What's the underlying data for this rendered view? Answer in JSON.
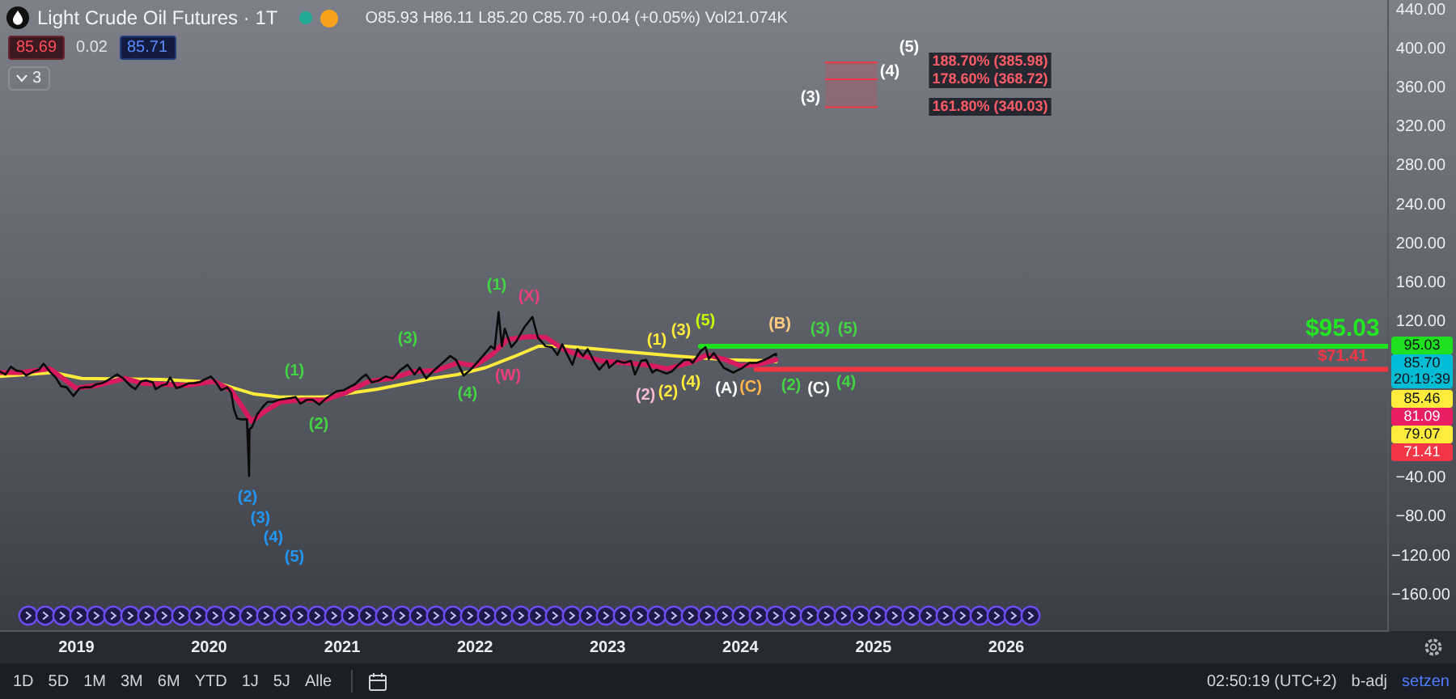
{
  "chart_data": {
    "type": "line",
    "title": "Light Crude Oil Futures · 1T",
    "subtitle": "O85.93 H86.11 L85.20 C85.70 +0.04 (+0.05%) Vol21.074K",
    "xlim": [
      "2018-06-05",
      "2028-11-16"
    ],
    "xticks": [
      "2019",
      "2020",
      "2021",
      "2022",
      "2023",
      "2024",
      "2025",
      "2026"
    ],
    "ylim": [
      -197,
      450
    ],
    "yticks": [
      {
        "value": 440,
        "label": "440.00"
      },
      {
        "value": 400,
        "label": "400.00"
      },
      {
        "value": 360,
        "label": "360.00"
      },
      {
        "value": 320,
        "label": "320.00"
      },
      {
        "value": 280,
        "label": "280.00"
      },
      {
        "value": 240,
        "label": "240.00"
      },
      {
        "value": 200,
        "label": "200.00"
      },
      {
        "value": 160,
        "label": "160.00"
      },
      {
        "value": 120,
        "label": "120.00"
      },
      {
        "value": -40,
        "label": "−40.00"
      },
      {
        "value": -80,
        "label": "−80.00"
      },
      {
        "value": -120,
        "label": "−120.00"
      },
      {
        "value": -160,
        "label": "−160.00"
      }
    ],
    "series": [
      {
        "color": "#0a0a0a",
        "x": [
          "2018-06-05",
          "2018-06-20",
          "2018-07-05",
          "2018-07-20",
          "2018-08-05",
          "2018-08-16",
          "2018-09-05",
          "2018-09-20",
          "2018-10-03",
          "2018-10-20",
          "2018-11-05",
          "2018-11-20",
          "2018-12-05",
          "2018-12-24",
          "2019-01-10",
          "2019-01-25",
          "2019-02-10",
          "2019-02-25",
          "2019-03-12",
          "2019-03-28",
          "2019-04-23",
          "2019-05-10",
          "2019-05-31",
          "2019-06-12",
          "2019-06-28",
          "2019-07-12",
          "2019-07-30",
          "2019-08-07",
          "2019-08-25",
          "2019-09-06",
          "2019-09-16",
          "2019-10-03",
          "2019-10-20",
          "2019-11-05",
          "2019-11-20",
          "2019-12-05",
          "2019-12-20",
          "2020-01-06",
          "2020-01-20",
          "2020-02-03",
          "2020-02-20",
          "2020-03-02",
          "2020-03-09",
          "2020-03-18",
          "2020-03-30",
          "2020-04-14",
          "2020-04-20",
          "2020-04-21",
          "2020-04-28",
          "2020-05-12",
          "2020-05-28",
          "2020-06-10",
          "2020-06-25",
          "2020-07-10",
          "2020-07-28",
          "2020-08-15",
          "2020-08-26",
          "2020-09-08",
          "2020-09-25",
          "2020-10-12",
          "2020-10-30",
          "2020-11-16",
          "2020-12-01",
          "2020-12-18",
          "2021-01-06",
          "2021-01-20",
          "2021-02-05",
          "2021-02-24",
          "2021-03-08",
          "2021-03-23",
          "2021-04-12",
          "2021-04-30",
          "2021-05-20",
          "2021-06-08",
          "2021-06-30",
          "2021-07-19",
          "2021-08-02",
          "2021-08-20",
          "2021-09-07",
          "2021-09-28",
          "2021-10-25",
          "2021-11-10",
          "2021-12-01",
          "2021-12-20",
          "2022-01-04",
          "2022-01-25",
          "2022-02-14",
          "2022-02-24",
          "2022-03-07",
          "2022-03-16",
          "2022-03-24",
          "2022-04-11",
          "2022-04-25",
          "2022-05-16",
          "2022-06-08",
          "2022-06-23",
          "2022-07-05",
          "2022-07-14",
          "2022-08-01",
          "2022-08-16",
          "2022-08-29",
          "2022-09-26",
          "2022-10-10",
          "2022-10-25",
          "2022-11-07",
          "2022-11-28",
          "2022-12-09",
          "2022-12-30",
          "2023-01-05",
          "2023-01-27",
          "2023-02-15",
          "2023-03-06",
          "2023-03-17",
          "2023-04-03",
          "2023-04-17",
          "2023-05-04",
          "2023-05-15",
          "2023-06-12",
          "2023-06-26",
          "2023-07-12",
          "2023-07-31",
          "2023-08-15",
          "2023-08-23",
          "2023-09-14",
          "2023-09-27",
          "2023-10-06",
          "2023-10-20",
          "2023-11-16",
          "2023-12-12",
          "2024-01-03",
          "2024-01-26",
          "2024-02-15",
          "2024-03-01",
          "2024-03-19",
          "2024-04-05",
          "2024-04-08"
        ],
        "values": [
          69,
          66,
          74,
          70,
          69,
          65,
          69,
          71,
          77,
          69,
          63,
          54,
          53,
          44,
          52,
          53,
          53,
          56,
          57,
          60,
          66,
          62,
          54,
          51,
          59,
          60,
          58,
          51,
          55,
          56,
          63,
          52,
          54,
          57,
          57,
          58,
          61,
          64,
          58,
          50,
          53,
          47,
          31,
          21,
          20,
          20,
          -38,
          10,
          12,
          25,
          33,
          38,
          38,
          40,
          41,
          42,
          43,
          36,
          40,
          40,
          35,
          41,
          45,
          49,
          50,
          53,
          56,
          63,
          66,
          58,
          60,
          64,
          62,
          70,
          76,
          66,
          73,
          62,
          69,
          76,
          85,
          81,
          65,
          71,
          77,
          86,
          95,
          92,
          130,
          95,
          113,
          94,
          100,
          114,
          125,
          104,
          99,
          95,
          94,
          86,
          97,
          76,
          92,
          85,
          92,
          77,
          71,
          80,
          73,
          80,
          78,
          80,
          66,
          80,
          81,
          68,
          71,
          67,
          69,
          75,
          81,
          81,
          78,
          90,
          94,
          82,
          88,
          73,
          68,
          72,
          78,
          78,
          80,
          83,
          87,
          85.7
        ]
      },
      {
        "color": "#d81b60",
        "x": [
          "2018-06-05",
          "2018-08-01",
          "2018-10-20",
          "2018-12-31",
          "2019-03-01",
          "2019-05-15",
          "2019-07-01",
          "2019-09-01",
          "2019-11-01",
          "2020-01-15",
          "2020-03-01",
          "2020-04-01",
          "2020-04-27",
          "2020-06-01",
          "2020-07-15",
          "2020-09-15",
          "2020-11-15",
          "2021-01-15",
          "2021-03-15",
          "2021-05-15",
          "2021-07-15",
          "2021-09-15",
          "2021-11-15",
          "2022-01-01",
          "2022-02-15",
          "2022-04-01",
          "2022-06-01",
          "2022-07-15",
          "2022-09-01",
          "2022-10-15",
          "2022-12-15",
          "2023-02-15",
          "2023-04-15",
          "2023-06-15",
          "2023-08-15",
          "2023-10-01",
          "2023-11-15",
          "2024-01-01",
          "2024-02-15",
          "2024-04-08"
        ],
        "values": [
          68,
          68,
          72,
          52,
          55,
          62,
          57,
          56,
          55,
          59,
          50,
          33,
          18,
          28,
          38,
          40,
          40,
          48,
          59,
          62,
          69,
          70,
          78,
          75,
          86,
          102,
          105,
          104,
          92,
          86,
          80,
          78,
          76,
          72,
          78,
          86,
          82,
          75,
          76,
          81.09
        ]
      },
      {
        "color": "#ffeb3b",
        "x": [
          "2018-06-05",
          "2018-10-30",
          "2019-01-15",
          "2019-08-23",
          "2020-01-18",
          "2020-05-04",
          "2020-07-13",
          "2020-11-10",
          "2021-04-08",
          "2021-09-05",
          "2021-11-14",
          "2022-01-30",
          "2022-04-16",
          "2022-06-25",
          "2022-09-09",
          "2023-02-03",
          "2023-07-06",
          "2023-11-30",
          "2024-03-28",
          "2024-04-08"
        ],
        "values": [
          64,
          68,
          62,
          61,
          58,
          46,
          43,
          43,
          51,
          62,
          66,
          73,
          84,
          95,
          95,
          90,
          85,
          81,
          80,
          79.07
        ]
      },
      {
        "color": "#1fe01f",
        "x": [
          "2023-09-13",
          "2028-11-16"
        ],
        "values": [
          95.03,
          95.03
        ]
      },
      {
        "color": "#f23645",
        "x": [
          "2024-02-13",
          "2028-11-16"
        ],
        "values": [
          71.41,
          71.41
        ]
      },
      {
        "color": "#f23645",
        "x": [
          "2024-08-22",
          "2025-01-11"
        ],
        "values": [
          368.72,
          368.72
        ],
        "lower": [
          340.03,
          340.03
        ],
        "upper": [
          385.98,
          385.98
        ]
      }
    ],
    "annotations": [
      {
        "text": "$95.03",
        "x": "2028-07-14",
        "y": 95.03
      },
      {
        "text": "$71.41",
        "x": "2028-07-14",
        "y": 71.41
      },
      "(2)",
      "(3)",
      "(4)",
      "(5)",
      "(1)",
      "(2)",
      "(3)",
      "(4)",
      "(1)",
      "(X)",
      "(W)",
      "(2)",
      "(2)",
      "(4)",
      "(1)",
      "(3)",
      "(5)",
      "(A)",
      "(C)",
      "(B)",
      "(3)",
      "(5)",
      "(2)",
      "(C)",
      "(4)",
      "(3)",
      "(4)",
      "(5)",
      "188.70% (385.98)",
      "178.60% (368.72)",
      "161.80% (340.03)",
      "95.03",
      "85.70",
      "85.46",
      "81.09",
      "79.07",
      "71.41",
      "85.69",
      "0.02",
      "85.71",
      "3",
      "1D",
      "5D",
      "1M",
      "3M",
      "6M",
      "YTD",
      "1J",
      "5J",
      "Alle",
      "02:50:19 (UTC+2)",
      "b-adj",
      "setzen",
      "20:19:39"
    ]
  }
}
